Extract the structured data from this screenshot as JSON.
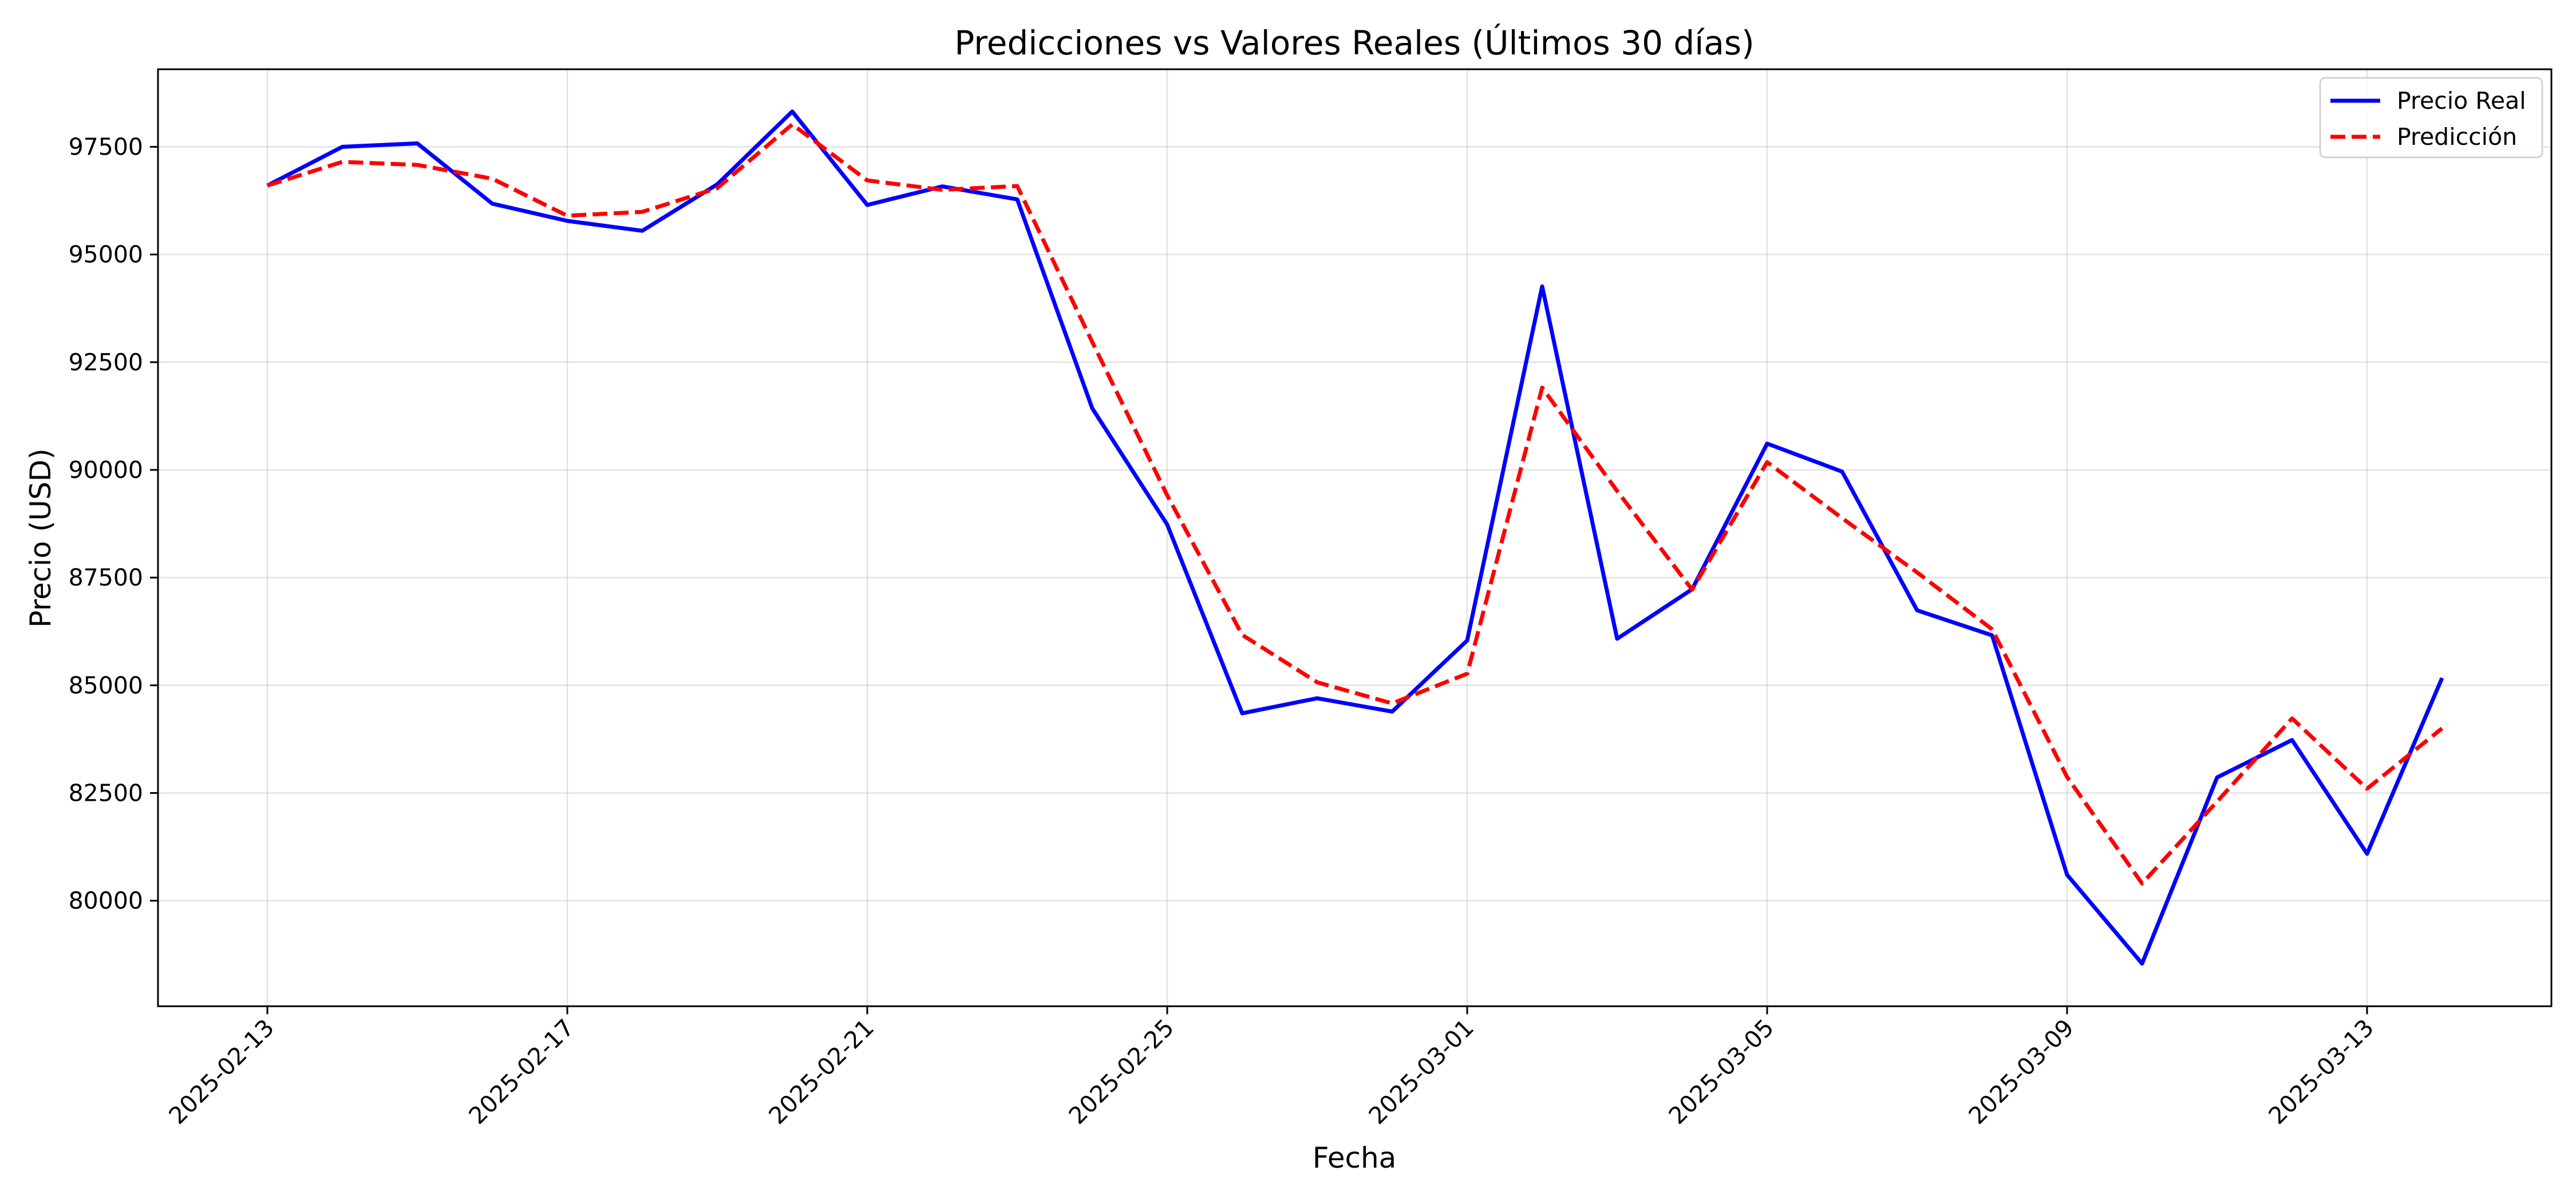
{
  "chart_data": {
    "type": "line",
    "title": "Predicciones vs Valores Reales (Últimos 30 días)",
    "xlabel": "Fecha",
    "ylabel": "Precio (USD)",
    "x": [
      "2025-02-13",
      "2025-02-14",
      "2025-02-15",
      "2025-02-16",
      "2025-02-17",
      "2025-02-18",
      "2025-02-19",
      "2025-02-20",
      "2025-02-21",
      "2025-02-22",
      "2025-02-23",
      "2025-02-24",
      "2025-02-25",
      "2025-02-26",
      "2025-02-27",
      "2025-02-28",
      "2025-03-01",
      "2025-03-02",
      "2025-03-03",
      "2025-03-04",
      "2025-03-05",
      "2025-03-06",
      "2025-03-07",
      "2025-03-08",
      "2025-03-09",
      "2025-03-10",
      "2025-03-11",
      "2025-03-12",
      "2025-03-13",
      "2025-03-14"
    ],
    "x_ticks": [
      "2025-02-13",
      "2025-02-17",
      "2025-02-21",
      "2025-02-25",
      "2025-03-01",
      "2025-03-05",
      "2025-03-09",
      "2025-03-13"
    ],
    "y_ticks": [
      80000,
      82500,
      85000,
      87500,
      90000,
      92500,
      95000,
      97500
    ],
    "y_tick_labels": [
      "80000",
      "82500",
      "85000",
      "87500",
      "90000",
      "92500",
      "95000",
      "97500"
    ],
    "ylim": [
      77550,
      99300
    ],
    "xlim": [
      "2025-02-11 13:00",
      "2025-03-15 11:00"
    ],
    "grid": true,
    "legend_position": "top-right",
    "series": [
      {
        "name": "Precio Real",
        "color": "#0000ff",
        "style": "solid",
        "values": [
          96600,
          97500,
          97580,
          96180,
          95780,
          95550,
          96630,
          98320,
          96150,
          96580,
          96280,
          91430,
          88730,
          84350,
          84700,
          84390,
          86040,
          94260,
          86080,
          87230,
          90610,
          89960,
          86740,
          86160,
          80600,
          78540,
          82860,
          83730,
          81090,
          85170
        ]
      },
      {
        "name": "Predicción",
        "color": "#ff0000",
        "style": "dashed",
        "values": [
          96600,
          97150,
          97080,
          96760,
          95900,
          95990,
          96540,
          98020,
          96720,
          96500,
          96590,
          92970,
          89410,
          86170,
          85070,
          84580,
          85270,
          91910,
          89510,
          87220,
          90180,
          88880,
          87620,
          86300,
          82870,
          80400,
          82300,
          84230,
          82600,
          84000
        ]
      }
    ]
  }
}
